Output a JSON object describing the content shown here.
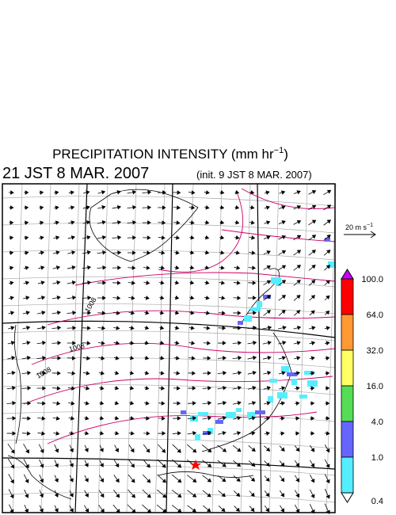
{
  "header": {
    "title": {
      "text": "PRECIPITATION INTENSITY (mm hr",
      "superscript": "−1",
      "suffix": ")"
    },
    "valid_time": "21 JST 8 MAR. 2007",
    "init_time": "(init. 9 JST 8 MAR. 2007)"
  },
  "wind_scale": {
    "text": "20 m s",
    "superscript": "−1"
  },
  "isobar_labels": [
    "1008",
    "1008",
    "1008"
  ],
  "colorbar": {
    "labels": [
      "100.0",
      "64.0",
      "32.0",
      "16.0",
      "4.0",
      "1.0",
      "0.4"
    ],
    "colors": [
      "#cc00ff",
      "#ff0000",
      "#ff9933",
      "#ffff66",
      "#55dd55",
      "#6666ff",
      "#55eeff",
      "#ffffff"
    ]
  }
}
